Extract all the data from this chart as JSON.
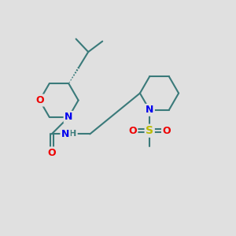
{
  "background_color": "#e0e0e0",
  "atom_colors": {
    "C": "#3a7a7a",
    "N": "#0000ee",
    "O": "#ee0000",
    "S": "#bbbb00",
    "H": "#3a7a7a"
  },
  "bond_color": "#3a7a7a",
  "bond_width": 1.5,
  "font_size": 9,
  "figsize": [
    3.0,
    3.0
  ],
  "dpi": 100
}
